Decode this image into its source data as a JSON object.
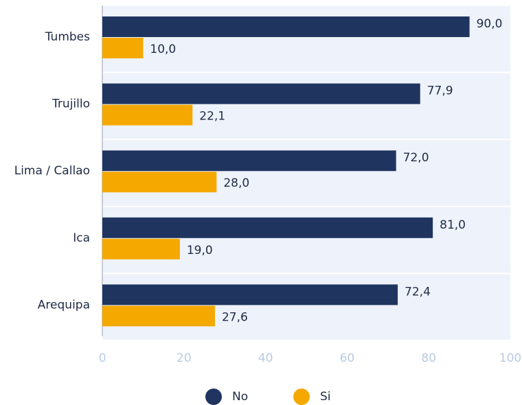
{
  "chart_data": {
    "type": "bar",
    "orientation": "horizontal",
    "categories": [
      "Tumbes",
      "Trujillo",
      "Lima / Callao",
      "Ica",
      "Arequipa"
    ],
    "series": [
      {
        "name": "No",
        "color": "#1f3560",
        "values": [
          90.0,
          77.9,
          72.0,
          81.0,
          72.4
        ],
        "value_labels": [
          "90,0",
          "77,9",
          "72,0",
          "81,0",
          "72,4"
        ]
      },
      {
        "name": "Si",
        "color": "#f5a800",
        "values": [
          10.0,
          22.1,
          28.0,
          19.0,
          27.6
        ],
        "value_labels": [
          "10,0",
          "22,1",
          "28,0",
          "19,0",
          "27,6"
        ]
      }
    ],
    "xlim": [
      0,
      100
    ],
    "xticks": [
      0,
      20,
      40,
      60,
      80,
      100
    ],
    "legend": "bottom"
  }
}
